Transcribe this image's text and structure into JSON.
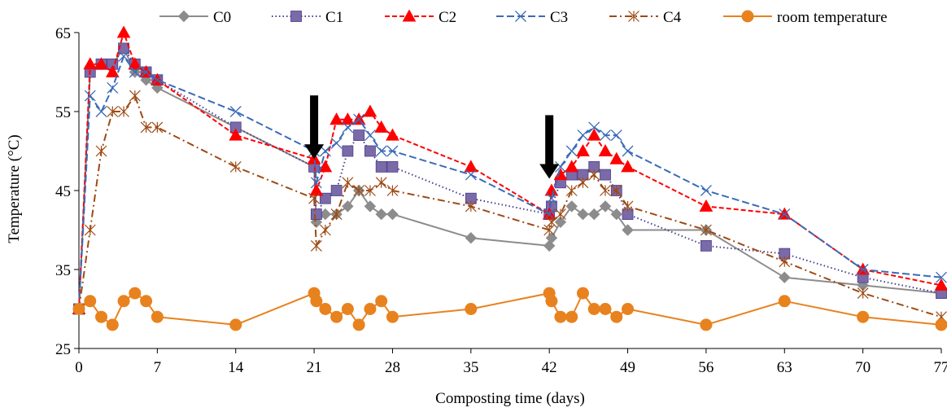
{
  "chart_data": {
    "type": "line",
    "xlabel": "Composting time (days)",
    "ylabel": "Temperature (°C)",
    "xlim": [
      0,
      77
    ],
    "ylim": [
      25,
      65
    ],
    "xticks": [
      0,
      7,
      14,
      21,
      28,
      35,
      42,
      49,
      56,
      63,
      70,
      77
    ],
    "yticks": [
      25,
      35,
      45,
      55,
      65
    ],
    "grid": false,
    "legend_position": "top",
    "annotations": [
      {
        "type": "arrow-down",
        "x": 21,
        "y_tip": 49
      },
      {
        "type": "arrow-down",
        "x": 42,
        "y_tip": 46.5
      }
    ],
    "series": [
      {
        "name": "C0",
        "color": "#8c8c8c",
        "dash": "solid",
        "marker": "diamond",
        "points": [
          [
            0,
            30
          ],
          [
            1,
            60
          ],
          [
            2,
            61
          ],
          [
            3,
            61
          ],
          [
            4,
            63
          ],
          [
            5,
            60
          ],
          [
            6,
            59
          ],
          [
            7,
            58
          ],
          [
            14,
            53
          ],
          [
            21,
            48
          ],
          [
            21.2,
            41
          ],
          [
            22,
            42
          ],
          [
            23,
            42
          ],
          [
            24,
            43
          ],
          [
            25,
            45
          ],
          [
            26,
            43
          ],
          [
            27,
            42
          ],
          [
            28,
            42
          ],
          [
            35,
            39
          ],
          [
            42,
            38
          ],
          [
            42.2,
            39
          ],
          [
            43,
            41
          ],
          [
            44,
            43
          ],
          [
            45,
            42
          ],
          [
            46,
            42
          ],
          [
            47,
            43
          ],
          [
            48,
            42
          ],
          [
            49,
            40
          ],
          [
            56,
            40
          ],
          [
            63,
            34
          ],
          [
            70,
            33
          ],
          [
            77,
            32
          ]
        ]
      },
      {
        "name": "C1",
        "color": "#4b3f8c",
        "dash": "dotted",
        "marker": "square",
        "marker_color": "#7b6aa8",
        "points": [
          [
            0,
            30
          ],
          [
            1,
            60
          ],
          [
            2,
            61
          ],
          [
            3,
            61
          ],
          [
            4,
            63
          ],
          [
            5,
            61
          ],
          [
            6,
            60
          ],
          [
            7,
            59
          ],
          [
            14,
            53
          ],
          [
            21,
            48
          ],
          [
            21.2,
            42
          ],
          [
            22,
            44
          ],
          [
            23,
            45
          ],
          [
            24,
            50
          ],
          [
            25,
            52
          ],
          [
            26,
            50
          ],
          [
            27,
            48
          ],
          [
            28,
            48
          ],
          [
            35,
            44
          ],
          [
            42,
            42
          ],
          [
            42.2,
            43
          ],
          [
            43,
            46
          ],
          [
            44,
            47
          ],
          [
            45,
            47
          ],
          [
            46,
            48
          ],
          [
            47,
            47
          ],
          [
            48,
            45
          ],
          [
            49,
            42
          ],
          [
            56,
            38
          ],
          [
            63,
            37
          ],
          [
            70,
            34
          ],
          [
            77,
            32
          ]
        ]
      },
      {
        "name": "C2",
        "color": "#ff0000",
        "dash": "dashed",
        "marker": "triangle",
        "points": [
          [
            0,
            30
          ],
          [
            1,
            61
          ],
          [
            2,
            61
          ],
          [
            3,
            60
          ],
          [
            4,
            65
          ],
          [
            5,
            61
          ],
          [
            6,
            60
          ],
          [
            7,
            59
          ],
          [
            14,
            52
          ],
          [
            21,
            49
          ],
          [
            21.2,
            45
          ],
          [
            22,
            48
          ],
          [
            23,
            54
          ],
          [
            24,
            54
          ],
          [
            25,
            54
          ],
          [
            26,
            55
          ],
          [
            27,
            53
          ],
          [
            28,
            52
          ],
          [
            35,
            48
          ],
          [
            42,
            42
          ],
          [
            42.2,
            45
          ],
          [
            43,
            47
          ],
          [
            44,
            48
          ],
          [
            45,
            50
          ],
          [
            46,
            52
          ],
          [
            47,
            50
          ],
          [
            48,
            49
          ],
          [
            49,
            48
          ],
          [
            56,
            43
          ],
          [
            63,
            42
          ],
          [
            70,
            35
          ],
          [
            77,
            33
          ]
        ]
      },
      {
        "name": "C3",
        "color": "#3a6bb8",
        "dash": "longdash",
        "marker": "x",
        "points": [
          [
            0,
            30
          ],
          [
            1,
            57
          ],
          [
            2,
            55
          ],
          [
            3,
            58
          ],
          [
            4,
            62
          ],
          [
            5,
            60
          ],
          [
            6,
            60
          ],
          [
            7,
            59
          ],
          [
            14,
            55
          ],
          [
            21,
            50
          ],
          [
            21.2,
            46
          ],
          [
            22,
            50
          ],
          [
            23,
            51
          ],
          [
            24,
            53
          ],
          [
            25,
            54
          ],
          [
            26,
            52
          ],
          [
            27,
            50
          ],
          [
            28,
            50
          ],
          [
            35,
            47
          ],
          [
            42,
            42
          ],
          [
            42.2,
            44
          ],
          [
            43,
            48
          ],
          [
            44,
            50
          ],
          [
            45,
            52
          ],
          [
            46,
            53
          ],
          [
            47,
            52
          ],
          [
            48,
            52
          ],
          [
            49,
            50
          ],
          [
            56,
            45
          ],
          [
            63,
            42
          ],
          [
            70,
            35
          ],
          [
            77,
            34
          ]
        ]
      },
      {
        "name": "C4",
        "color": "#9e4a14",
        "dash": "dashdot",
        "marker": "asterisk",
        "points": [
          [
            0,
            30
          ],
          [
            1,
            40
          ],
          [
            2,
            50
          ],
          [
            3,
            55
          ],
          [
            4,
            55
          ],
          [
            5,
            57
          ],
          [
            6,
            53
          ],
          [
            7,
            53
          ],
          [
            14,
            48
          ],
          [
            21,
            44
          ],
          [
            21.2,
            38
          ],
          [
            22,
            40
          ],
          [
            23,
            42
          ],
          [
            24,
            46
          ],
          [
            25,
            45
          ],
          [
            26,
            45
          ],
          [
            27,
            46
          ],
          [
            28,
            45
          ],
          [
            35,
            43
          ],
          [
            42,
            40
          ],
          [
            42.2,
            41
          ],
          [
            43,
            42
          ],
          [
            44,
            45
          ],
          [
            45,
            46
          ],
          [
            46,
            47
          ],
          [
            47,
            45
          ],
          [
            48,
            45
          ],
          [
            49,
            43
          ],
          [
            56,
            40
          ],
          [
            63,
            36
          ],
          [
            70,
            32
          ],
          [
            77,
            29
          ]
        ]
      },
      {
        "name": "room temperature",
        "color": "#e8821e",
        "dash": "solid",
        "marker": "circle",
        "points": [
          [
            0,
            30
          ],
          [
            1,
            31
          ],
          [
            2,
            29
          ],
          [
            3,
            28
          ],
          [
            4,
            31
          ],
          [
            5,
            32
          ],
          [
            6,
            31
          ],
          [
            7,
            29
          ],
          [
            14,
            28
          ],
          [
            21,
            32
          ],
          [
            21.2,
            31
          ],
          [
            22,
            30
          ],
          [
            23,
            29
          ],
          [
            24,
            30
          ],
          [
            25,
            28
          ],
          [
            26,
            30
          ],
          [
            27,
            31
          ],
          [
            28,
            29
          ],
          [
            35,
            30
          ],
          [
            42,
            32
          ],
          [
            42.2,
            31
          ],
          [
            43,
            29
          ],
          [
            44,
            29
          ],
          [
            45,
            32
          ],
          [
            46,
            30
          ],
          [
            47,
            30
          ],
          [
            48,
            29
          ],
          [
            49,
            30
          ],
          [
            56,
            28
          ],
          [
            63,
            31
          ],
          [
            70,
            29
          ],
          [
            77,
            28
          ]
        ]
      }
    ]
  }
}
